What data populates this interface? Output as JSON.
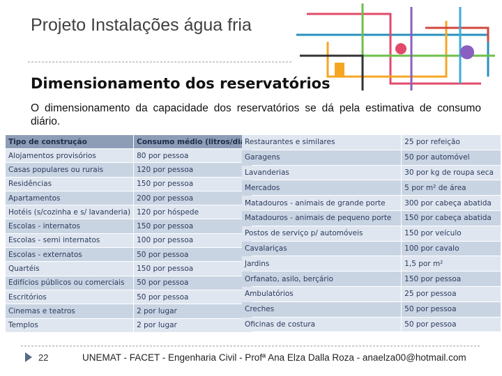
{
  "header": {
    "title": "Projeto Instalações água fria",
    "subtitle": "Dimensionamento dos reservatórios"
  },
  "body": "O dimensionamento da capacidade dos reservatórios se dá pela estimativa de consumo diário.",
  "table_left": {
    "headers": [
      "Tipo de construção",
      "Consumo médio (litros/dia)"
    ],
    "rows": [
      [
        "Alojamentos provisórios",
        "80 por pessoa"
      ],
      [
        "Casas populares ou rurais",
        "120 por pessoa"
      ],
      [
        "Residências",
        "150 por pessoa"
      ],
      [
        "Apartamentos",
        "200 por pessoa"
      ],
      [
        "Hotéis (s/cozinha e s/ lavanderia)",
        "120 por hóspede"
      ],
      [
        "Escolas - internatos",
        "150 por pessoa"
      ],
      [
        "Escolas - semi internatos",
        "100 por pessoa"
      ],
      [
        "Escolas - externatos",
        "50 por pessoa"
      ],
      [
        "Quartéis",
        "150 por pessoa"
      ],
      [
        "Edifícios públicos ou comerciais",
        "50 por pessoa"
      ],
      [
        "Escritórios",
        "50 por pessoa"
      ],
      [
        "Cinemas e teatros",
        "2 por lugar"
      ],
      [
        "Templos",
        "2 por lugar"
      ]
    ]
  },
  "table_right": {
    "rows": [
      [
        "Restaurantes e similares",
        "25 por refeição"
      ],
      [
        "Garagens",
        "50 por automóvel"
      ],
      [
        "Lavanderias",
        "30 por kg de roupa seca"
      ],
      [
        "Mercados",
        "5 por m² de área"
      ],
      [
        "Matadouros - animais de grande porte",
        "300 por cabeça abatida"
      ],
      [
        "Matadouros - animais de pequeno porte",
        "150 por cabeça abatida"
      ],
      [
        "Postos de serviço p/ automóveis",
        "150 por veículo"
      ],
      [
        "Cavalariças",
        "100 por cavalo"
      ],
      [
        "Jardins",
        "1,5 por m²"
      ],
      [
        "Orfanato, asilo, berçário",
        "150 por pessoa"
      ],
      [
        "Ambulatórios",
        "25 por pessoa"
      ],
      [
        "Creches",
        "50 por pessoa"
      ],
      [
        "Oficinas de costura",
        "50 por pessoa"
      ]
    ]
  },
  "footer": {
    "page": "22",
    "text": "UNEMAT - FACET - Engenharia Civil - Profª Ana Elza Dalla Roza - anaelza00@hotmail.com"
  }
}
